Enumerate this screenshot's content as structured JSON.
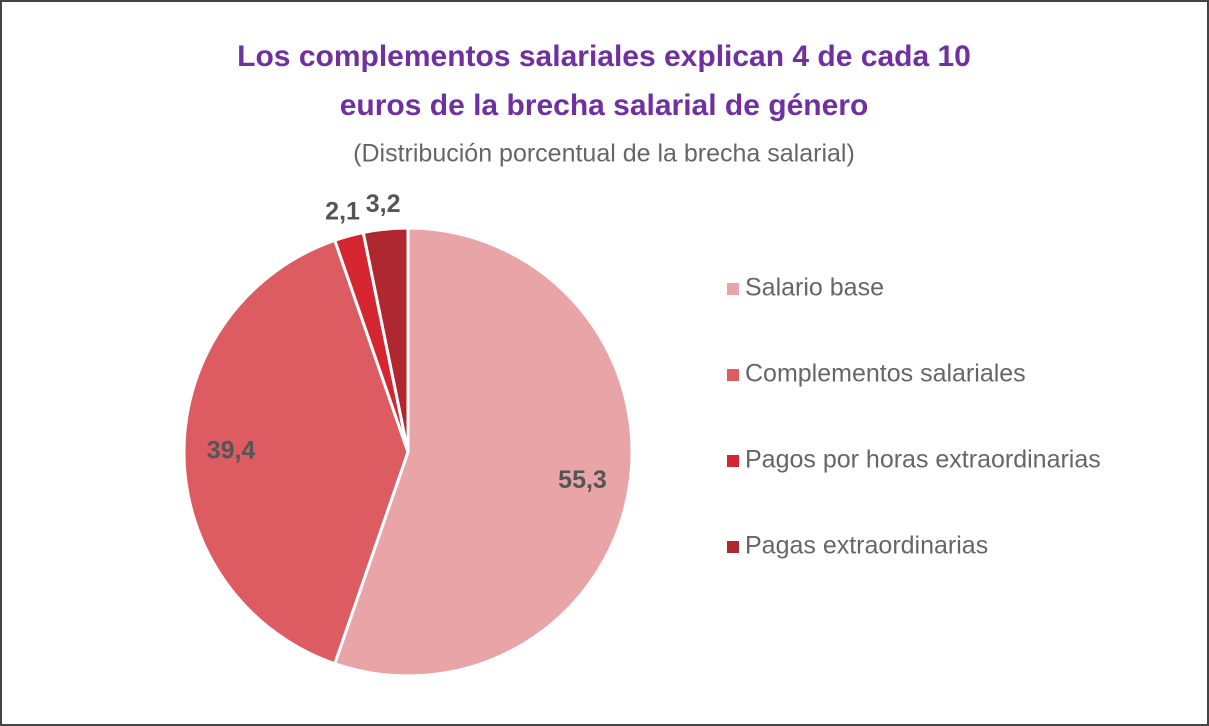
{
  "chart_data": {
    "type": "pie",
    "title": [
      "Los complementos salariales explican 4 de cada 10",
      "euros de la brecha salarial de género"
    ],
    "subtitle": "(Distribución porcentual de la brecha salarial)",
    "categories": [
      "Salario base",
      "Complementos salariales",
      "Pagos por horas extraordinarias",
      "Pagas extraordinarias"
    ],
    "values": [
      55.3,
      39.4,
      2.1,
      3.2
    ],
    "value_labels": [
      "55,3",
      "39,4",
      "2,1",
      "3,2"
    ],
    "colors": [
      "#e8a4a6",
      "#dc5c62",
      "#d42531",
      "#b0282f"
    ],
    "legend": "right"
  }
}
